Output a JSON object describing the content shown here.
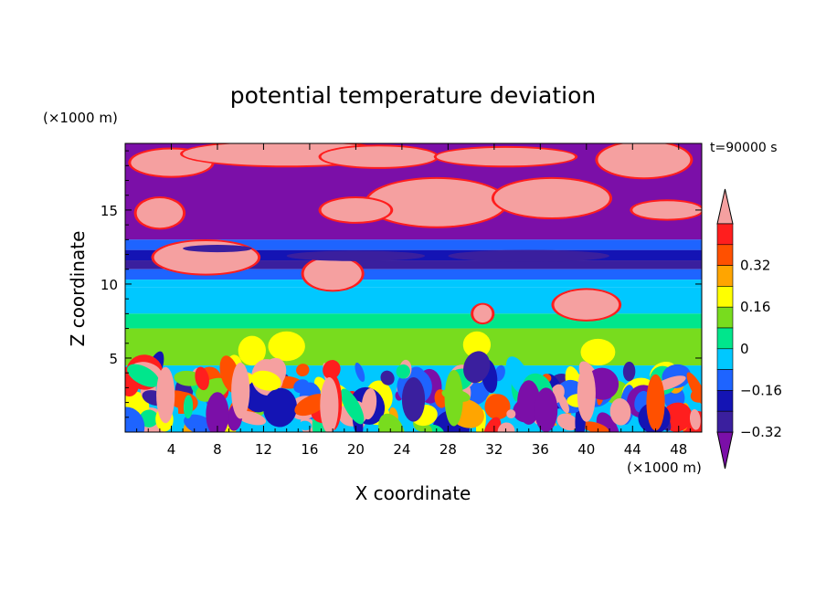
{
  "chart_data": {
    "type": "heatmap",
    "title": "potential temperature deviation",
    "xlabel": "X coordinate",
    "ylabel": "Z coordinate",
    "x_unit": "(×1000 m)",
    "y_unit": "(×1000 m)",
    "time_label": "t=90000 s",
    "xlim": [
      0,
      50
    ],
    "ylim": [
      0,
      19.5
    ],
    "x_ticks": [
      4,
      8,
      12,
      16,
      20,
      24,
      28,
      32,
      36,
      40,
      44,
      48
    ],
    "y_ticks": [
      5,
      10,
      15
    ],
    "colorbar": {
      "levels": [
        -0.4,
        -0.32,
        -0.24,
        -0.16,
        -0.08,
        0,
        0.08,
        0.16,
        0.24,
        0.32,
        0.4
      ],
      "colors": [
        "#7b0fa8",
        "#3a1f9e",
        "#1414b4",
        "#1e64ff",
        "#00c8ff",
        "#00e68c",
        "#78dc1e",
        "#ffff00",
        "#ffa500",
        "#ff5000",
        "#ff1e1e",
        "#f5a0a0"
      ],
      "tick_labels": [
        "0.32",
        "0.16",
        "0",
        "−0.16",
        "−0.32"
      ],
      "tick_values": [
        0.32,
        0.16,
        0,
        -0.16,
        -0.32
      ],
      "extend": "both"
    },
    "layers": [
      {
        "z": [
          0,
          4.5
        ],
        "pattern": "turbulent convection",
        "values": [
          -0.4,
          -0.32,
          -0.16,
          0,
          0.16,
          0.32,
          0.4
        ]
      },
      {
        "z": [
          4.5,
          8
        ],
        "mean": 0.04
      },
      {
        "z": [
          8,
          10
        ],
        "mean": -0.08
      },
      {
        "z": [
          10,
          11.5
        ],
        "mean": -0.2
      },
      {
        "z": [
          11.5,
          13
        ],
        "mean": -0.3
      },
      {
        "z": [
          13,
          19.5
        ],
        "pattern": "alternating +0.4 / −0.4 patches"
      }
    ]
  }
}
